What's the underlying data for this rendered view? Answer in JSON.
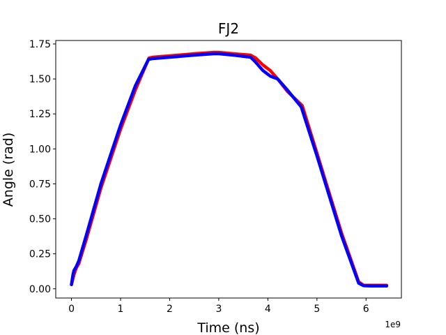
{
  "chart_data": {
    "type": "line",
    "title": "FJ2",
    "xlabel": "Time (ns)",
    "ylabel": "Angle (rad)",
    "x_offset_label": "1e9",
    "xlim": [
      -0.32,
      6.72
    ],
    "ylim": [
      -0.066,
      1.775
    ],
    "xticks": [
      0,
      1,
      2,
      3,
      4,
      5,
      6
    ],
    "xtick_labels": [
      "0",
      "1",
      "2",
      "3",
      "4",
      "5",
      "6"
    ],
    "yticks": [
      0.0,
      0.25,
      0.5,
      0.75,
      1.0,
      1.25,
      1.5,
      1.75
    ],
    "ytick_labels": [
      "0.00",
      "0.25",
      "0.50",
      "0.75",
      "1.00",
      "1.25",
      "1.50",
      "1.75"
    ],
    "grid": false,
    "series": [
      {
        "color": "#ff0000",
        "x": [
          0.0,
          0.03,
          0.05,
          0.1,
          0.15,
          0.3,
          0.6,
          1.0,
          1.3,
          1.58,
          1.65,
          2.0,
          2.5,
          2.9,
          3.0,
          3.3,
          3.65,
          3.75,
          3.9,
          4.05,
          4.2,
          4.4,
          4.7,
          5.0,
          5.5,
          5.85,
          5.95,
          6.1,
          6.42
        ],
        "y": [
          0.03,
          0.07,
          0.1,
          0.15,
          0.18,
          0.35,
          0.72,
          1.14,
          1.42,
          1.65,
          1.655,
          1.665,
          1.68,
          1.69,
          1.69,
          1.68,
          1.67,
          1.65,
          1.6,
          1.56,
          1.5,
          1.41,
          1.31,
          0.97,
          0.4,
          0.05,
          0.025,
          0.025,
          0.025
        ]
      },
      {
        "color": "#0000ff",
        "x": [
          0.0,
          0.03,
          0.05,
          0.1,
          0.15,
          0.3,
          0.6,
          1.0,
          1.3,
          1.57,
          1.65,
          2.0,
          2.5,
          2.9,
          3.0,
          3.3,
          3.65,
          3.75,
          3.9,
          4.05,
          4.2,
          4.4,
          4.68,
          5.0,
          5.5,
          5.85,
          5.95,
          6.1,
          6.42
        ],
        "y": [
          0.03,
          0.1,
          0.13,
          0.16,
          0.2,
          0.38,
          0.75,
          1.17,
          1.45,
          1.64,
          1.645,
          1.655,
          1.67,
          1.68,
          1.68,
          1.67,
          1.655,
          1.62,
          1.56,
          1.52,
          1.5,
          1.42,
          1.3,
          0.95,
          0.38,
          0.04,
          0.022,
          0.02,
          0.02
        ]
      }
    ]
  }
}
